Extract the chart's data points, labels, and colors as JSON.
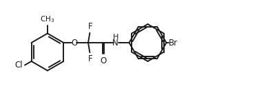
{
  "bg_color": "#ffffff",
  "line_color": "#1a1a1a",
  "text_color": "#1a1a1a",
  "line_width": 1.4,
  "font_size": 8.5,
  "figsize": [
    4.06,
    1.51
  ],
  "dpi": 100,
  "xlim": [
    0,
    10.2
  ],
  "ylim": [
    0,
    3.72
  ]
}
